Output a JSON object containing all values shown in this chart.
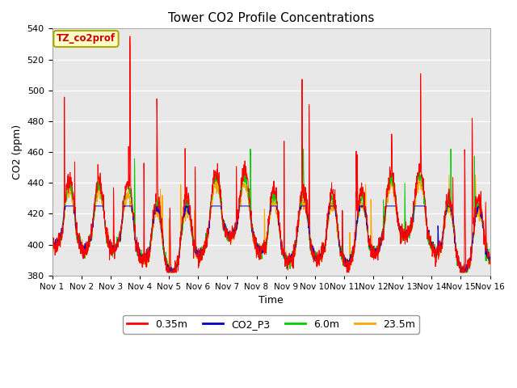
{
  "title": "Tower CO2 Profile Concentrations",
  "xlabel": "Time",
  "ylabel": "CO2 (ppm)",
  "ylim": [
    380,
    540
  ],
  "yticks": [
    380,
    400,
    420,
    440,
    460,
    480,
    500,
    520,
    540
  ],
  "xtick_labels": [
    "Nov 1",
    "Nov 2",
    "Nov 3",
    "Nov 4",
    "Nov 5",
    "Nov 6",
    "Nov 7",
    "Nov 8",
    "Nov 9",
    "Nov 10",
    "Nov 11",
    "Nov 12",
    "Nov 13",
    "Nov 14",
    "Nov 15",
    "Nov 16"
  ],
  "series_order": [
    "23.5m",
    "6.0m",
    "CO2_P3",
    "0.35m"
  ],
  "series": {
    "0.35m": {
      "color": "#ff0000",
      "lw": 0.7
    },
    "CO2_P3": {
      "color": "#0000cc",
      "lw": 0.7
    },
    "6.0m": {
      "color": "#00cc00",
      "lw": 0.7
    },
    "23.5m": {
      "color": "#ffa500",
      "lw": 0.7
    }
  },
  "legend_label": "TZ_co2prof",
  "legend_box_color": "#ffffcc",
  "legend_text_color": "#cc0000",
  "plot_bg_color": "#e8e8e8",
  "grid_color": "#ffffff",
  "n_points": 2000,
  "seed": 42
}
